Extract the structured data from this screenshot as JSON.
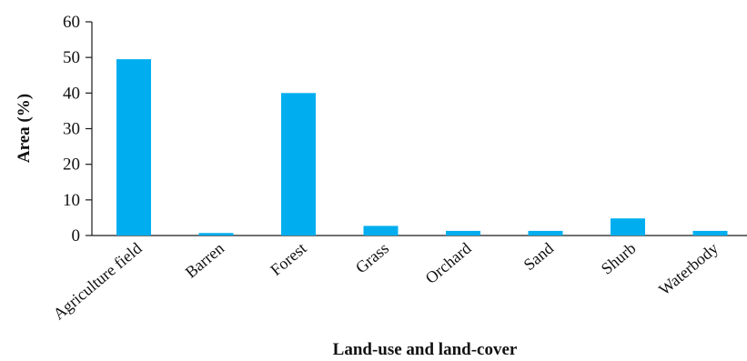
{
  "chart_data": {
    "type": "bar",
    "categories": [
      "Agriculture field",
      "Barren",
      "Forest",
      "Grass",
      "Orchard",
      "Sand",
      "Shurb",
      "Waterbody"
    ],
    "values": [
      49.5,
      0.7,
      40.0,
      2.7,
      1.3,
      1.3,
      4.8,
      1.3
    ],
    "title": "",
    "xlabel": "Land-use and land-cover",
    "ylabel": "Area  (%)",
    "ylim": [
      0,
      60
    ],
    "yticks": [
      0,
      10,
      20,
      30,
      40,
      50,
      60
    ],
    "bar_color": "#00aeef",
    "grid": false,
    "legend": "none"
  }
}
